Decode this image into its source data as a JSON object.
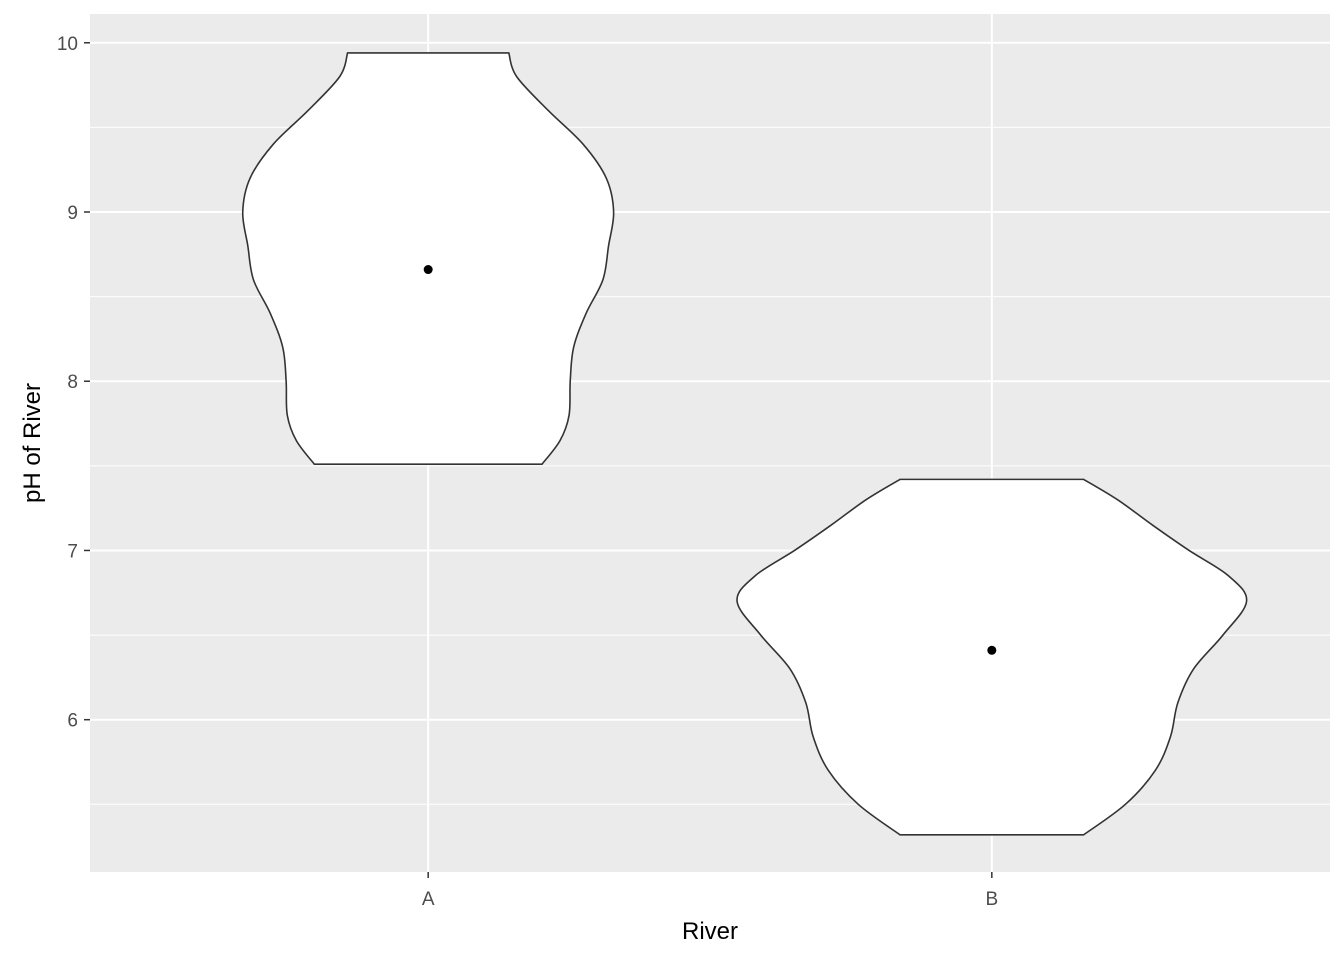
{
  "chart_data": {
    "type": "violin",
    "title": "",
    "xlabel": "River",
    "ylabel": "pH of River",
    "categories": [
      "A",
      "B"
    ],
    "ylim": [
      5.1,
      10.17
    ],
    "yticks": [
      6,
      7,
      8,
      9,
      10
    ],
    "grid": true,
    "legend": "none",
    "colors": {
      "panel": "#ebebeb",
      "grid": "#ffffff",
      "fill": "#ffffff",
      "outline": "#333333",
      "point": "#000000"
    },
    "violins": [
      {
        "category": "A",
        "min": 7.51,
        "max": 9.94,
        "point": 8.66,
        "density": [
          {
            "y": 7.51,
            "w": 0.202
          },
          {
            "y": 7.65,
            "w": 0.234
          },
          {
            "y": 7.8,
            "w": 0.25
          },
          {
            "y": 8.0,
            "w": 0.252
          },
          {
            "y": 8.2,
            "w": 0.258
          },
          {
            "y": 8.4,
            "w": 0.28
          },
          {
            "y": 8.6,
            "w": 0.31
          },
          {
            "y": 8.8,
            "w": 0.32
          },
          {
            "y": 9.0,
            "w": 0.329
          },
          {
            "y": 9.2,
            "w": 0.316
          },
          {
            "y": 9.4,
            "w": 0.275
          },
          {
            "y": 9.6,
            "w": 0.213
          },
          {
            "y": 9.8,
            "w": 0.157
          },
          {
            "y": 9.94,
            "w": 0.143
          }
        ]
      },
      {
        "category": "B",
        "min": 5.32,
        "max": 7.42,
        "point": 6.41,
        "density": [
          {
            "y": 5.32,
            "w": 0.163
          },
          {
            "y": 5.5,
            "w": 0.237
          },
          {
            "y": 5.7,
            "w": 0.29
          },
          {
            "y": 5.9,
            "w": 0.317
          },
          {
            "y": 6.1,
            "w": 0.33
          },
          {
            "y": 6.3,
            "w": 0.358
          },
          {
            "y": 6.5,
            "w": 0.41
          },
          {
            "y": 6.7,
            "w": 0.452
          },
          {
            "y": 6.85,
            "w": 0.42
          },
          {
            "y": 7.0,
            "w": 0.35
          },
          {
            "y": 7.15,
            "w": 0.285
          },
          {
            "y": 7.3,
            "w": 0.223
          },
          {
            "y": 7.42,
            "w": 0.163
          }
        ]
      }
    ]
  }
}
